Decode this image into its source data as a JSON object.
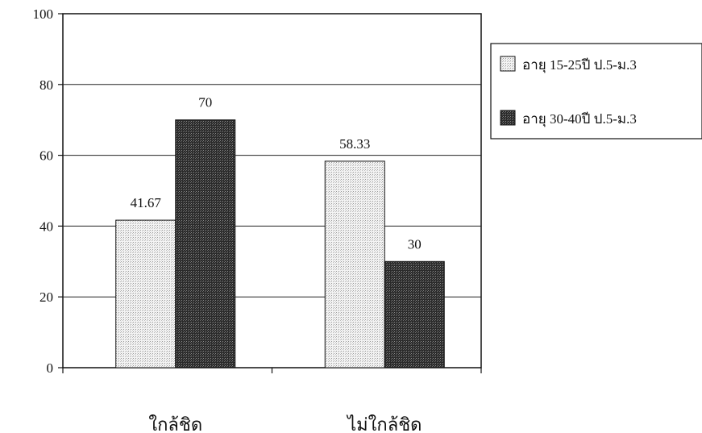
{
  "chart_data": {
    "type": "bar",
    "categories": [
      "ใกล้ชิด",
      "ไม่ใกล้ชิด"
    ],
    "series": [
      {
        "name": "อายุ 15-25ปี ป.5-ม.3",
        "values": [
          41.67,
          58.33
        ],
        "value_labels": [
          "41.67",
          "58.33"
        ],
        "color": "#e6e6e6"
      },
      {
        "name": "อายุ 30-40ปี ป.5-ม.3",
        "values": [
          70,
          30
        ],
        "value_labels": [
          "70",
          "30"
        ],
        "color": "#3a3a3a"
      }
    ],
    "ylim": [
      0,
      100
    ],
    "yticks": [
      "0",
      "20",
      "40",
      "60",
      "80",
      "100"
    ],
    "grid": true,
    "legend_position": "right",
    "title": "",
    "xlabel": "",
    "ylabel": ""
  }
}
